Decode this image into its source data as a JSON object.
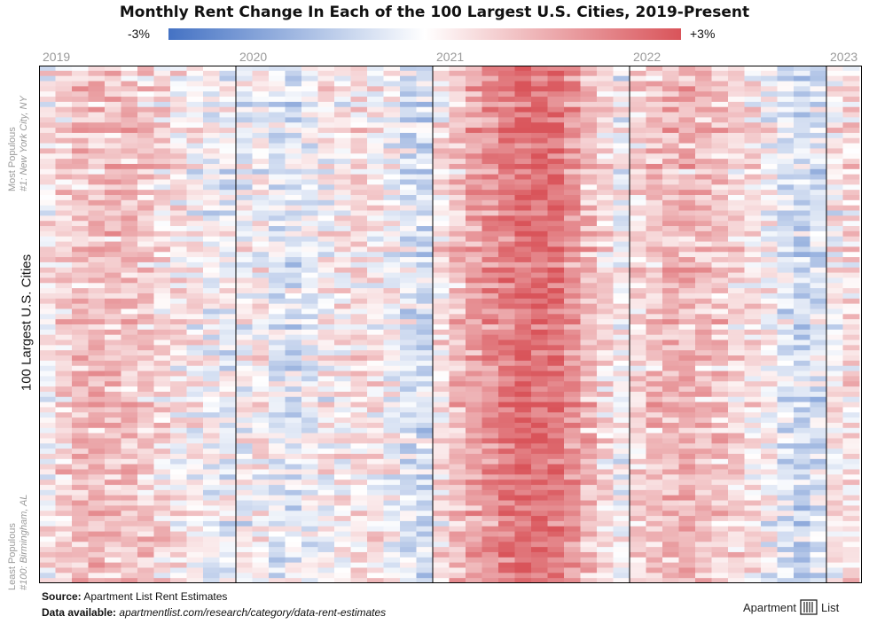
{
  "title": "Monthly Rent Change In Each of the 100 Largest U.S. Cities, 2019-Present",
  "legend": {
    "min_label": "-3%",
    "max_label": "+3%",
    "colors": [
      "#4472c4",
      "#ffffff",
      "#d9545a"
    ]
  },
  "axis": {
    "y_title": "100 Largest U.S. Cities",
    "top_note_1": "Most Populous",
    "top_note_2": "#1: New York City, NY",
    "bottom_note_1": "Least Populous",
    "bottom_note_2": "#100: Birmingham, AL"
  },
  "footer": {
    "source_label": "Source:",
    "source_text": "Apartment List Rent Estimates",
    "data_label": "Data available:",
    "data_text": "apartmentlist.com/research/category/data-rent-estimates"
  },
  "brand": {
    "name": "Apartment",
    "name2": "List"
  },
  "chart_data": {
    "type": "heatmap",
    "title": "Monthly Rent Change In Each of the 100 Largest U.S. Cities, 2019-Present",
    "x_years": [
      "2019",
      "2020",
      "2021",
      "2022",
      "2023"
    ],
    "months_per_year": 12,
    "n_months": 50,
    "n_cities": 100,
    "value_range": [
      -3,
      3
    ],
    "unit": "%",
    "y_order": "Most populous at top to least populous at bottom",
    "color_scale": {
      "min": "#4472c4",
      "mid": "#ffffff",
      "max": "#d9545a"
    },
    "monthly_pattern": [
      0.25,
      0.55,
      0.85,
      1.0,
      0.95,
      0.85,
      0.7,
      0.5,
      0.25,
      0.1,
      -0.15,
      -0.25,
      -0.1,
      0.15,
      -0.3,
      -0.45,
      -0.2,
      0.05,
      0.2,
      0.35,
      0.25,
      -0.05,
      -0.45,
      -0.6,
      0.35,
      0.9,
      1.35,
      1.75,
      2.1,
      2.45,
      2.5,
      2.3,
      1.7,
      1.0,
      0.45,
      -0.05,
      0.55,
      0.9,
      1.05,
      1.1,
      0.95,
      0.8,
      0.55,
      0.3,
      -0.05,
      -0.45,
      -0.7,
      -0.55,
      0.15,
      0.45
    ],
    "city_offsets": [
      -0.2,
      0.3,
      -0.4,
      0.1,
      0.5,
      -0.1,
      0.2,
      -0.5,
      0.4,
      0.0,
      -0.3,
      0.2,
      0.6,
      -0.2,
      0.1,
      -0.4,
      0.3,
      0.0,
      -0.1,
      0.5,
      -0.6,
      0.2,
      0.1,
      -0.3,
      0.4,
      0.0,
      -0.2,
      0.3,
      -0.5,
      0.1,
      0.2,
      -0.1,
      0.4,
      -0.3,
      0.0,
      0.5,
      -0.2,
      0.1,
      -0.4,
      0.3,
      0.0,
      0.2,
      -0.3,
      0.4,
      -0.1,
      0.1,
      0.3,
      -0.2,
      0.0,
      0.5,
      -0.4,
      0.2,
      -0.1,
      0.3,
      0.0,
      -0.2,
      0.4,
      0.1,
      -0.3,
      0.2,
      0.0,
      0.3,
      -0.1,
      0.2,
      -0.4,
      0.5,
      0.1,
      -0.2,
      0.0,
      0.3,
      -0.3,
      0.2,
      0.4,
      -0.1,
      0.0,
      0.3,
      -0.2,
      0.1,
      0.5,
      -0.3,
      0.2,
      0.0,
      -0.1,
      0.4,
      0.1,
      -0.2,
      0.3,
      0.0,
      -0.4,
      0.2,
      0.1,
      0.3,
      -0.1,
      0.0,
      0.4,
      -0.2,
      0.2,
      0.1,
      -0.3,
      0.3
    ]
  }
}
